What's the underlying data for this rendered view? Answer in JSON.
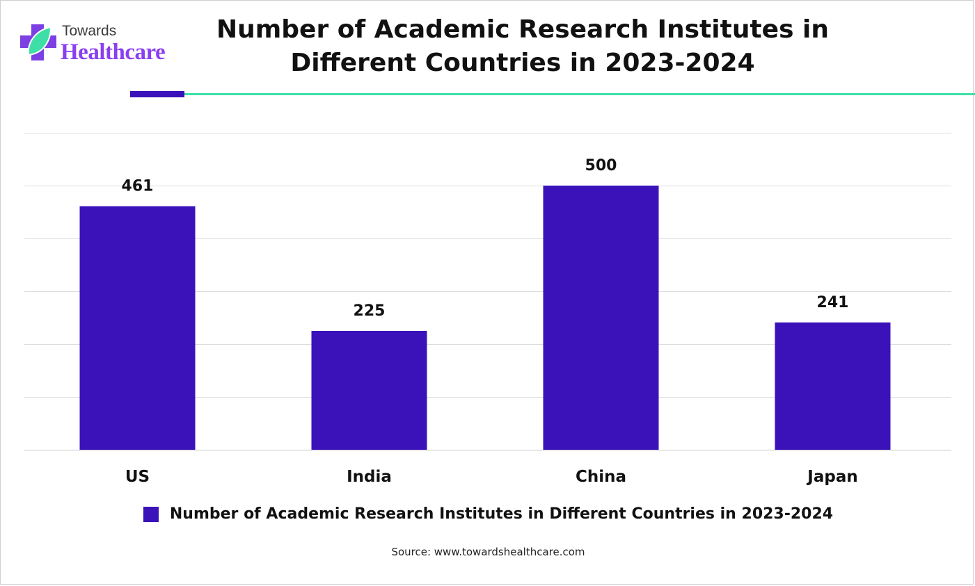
{
  "brand": {
    "top_text": "Towards",
    "bottom_text": "Healthcare",
    "icon": "plus-leaf-logo-icon",
    "colors": {
      "plus": "#7b3fe4",
      "leaf": "#3ddfa6"
    }
  },
  "colors": {
    "bar": "#3b12b9",
    "accent_purple": "#3b12b9",
    "accent_green": "#3ddfa6",
    "gridline": "#dcdcdc"
  },
  "chart_data": {
    "type": "bar",
    "title": "Number of Academic Research Institutes in Different Countries in 2023-2024",
    "categories": [
      "US",
      "India",
      "China",
      "Japan"
    ],
    "series": [
      {
        "name": "Number of Academic Research Institutes in Different Countries in 2023-2024",
        "values": [
          461,
          225,
          500,
          241
        ]
      }
    ],
    "data_labels": [
      "461",
      "225",
      "500",
      "241"
    ],
    "xlabel": "",
    "ylabel": "",
    "ylim": [
      0,
      600
    ],
    "grid": true,
    "y_tick_labels_shown": false,
    "legend_position": "bottom"
  },
  "source": "Source: www.towardshealthcare.com"
}
